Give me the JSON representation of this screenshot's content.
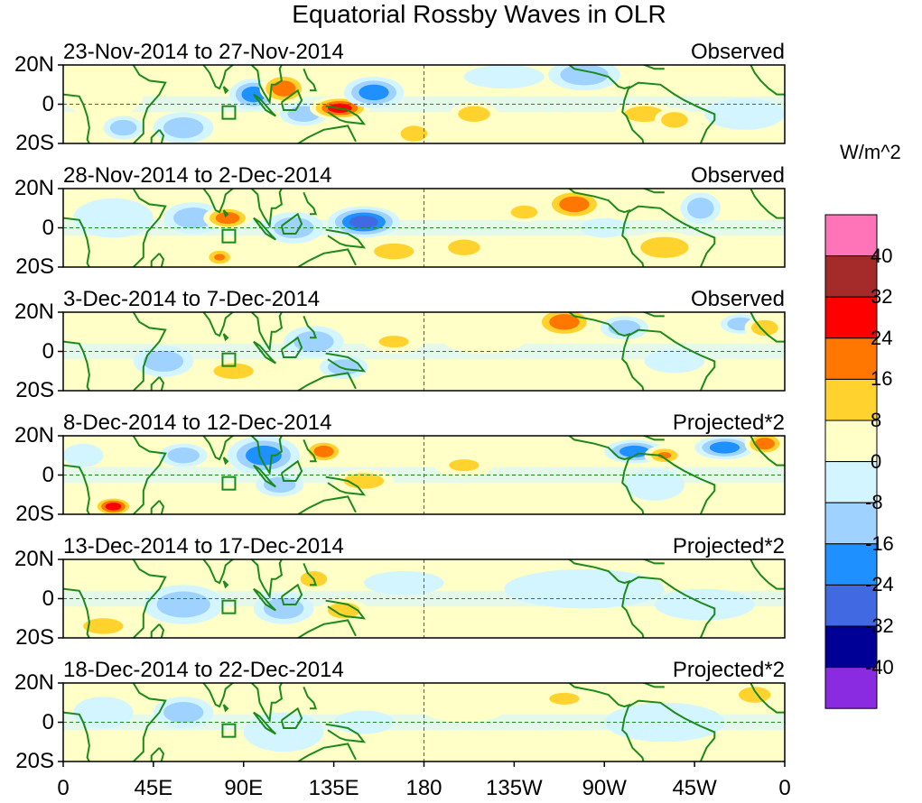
{
  "title": "Equatorial Rossby Waves in OLR",
  "panels": [
    {
      "date_range": "23-Nov-2014 to 27-Nov-2014",
      "status": "Observed"
    },
    {
      "date_range": "28-Nov-2014 to 2-Dec-2014",
      "status": "Observed"
    },
    {
      "date_range": "3-Dec-2014 to 7-Dec-2014",
      "status": "Observed"
    },
    {
      "date_range": "8-Dec-2014 to 12-Dec-2014",
      "status": "Projected*2"
    },
    {
      "date_range": "13-Dec-2014 to 17-Dec-2014",
      "status": "Projected*2"
    },
    {
      "date_range": "18-Dec-2014 to 22-Dec-2014",
      "status": "Projected*2"
    }
  ],
  "lat_labels": [
    "20N",
    "0",
    "20S"
  ],
  "lon_labels": [
    "0",
    "45E",
    "90E",
    "135E",
    "180",
    "135W",
    "90W",
    "45W",
    "0"
  ],
  "colorbar": {
    "units": "W/m^2",
    "labels": [
      "40",
      "32",
      "24",
      "16",
      "8",
      "0",
      "-8",
      "-16",
      "-24",
      "-32",
      "-40"
    ],
    "colors": [
      "#ff73b9",
      "#a52a2a",
      "#ff0000",
      "#ff7700",
      "#ffd22e",
      "#ffffc8",
      "#d2f5ff",
      "#a0d2ff",
      "#1e90ff",
      "#4169e1",
      "#000096",
      "#8a2be2"
    ]
  }
}
